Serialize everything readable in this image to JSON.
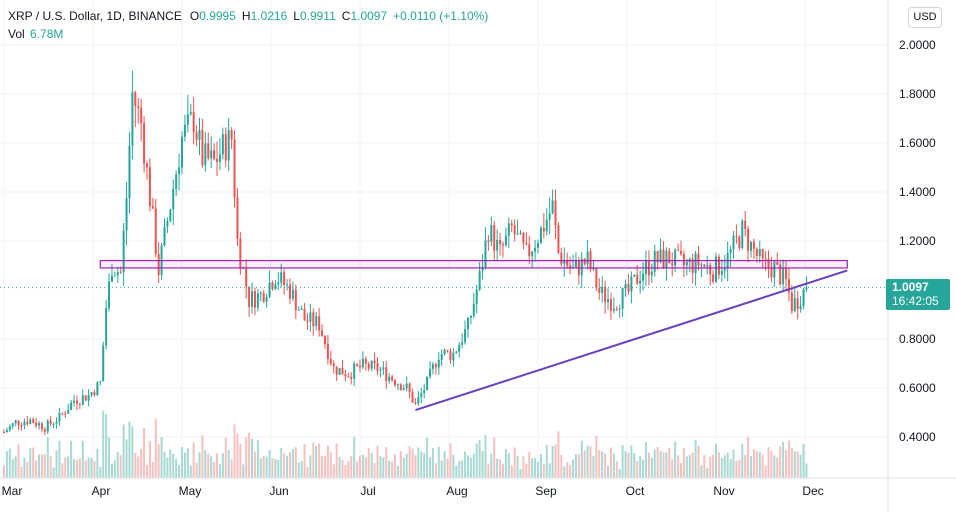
{
  "header": {
    "symbol": "XRP / U.S. Dollar, 1D, BINANCE",
    "open_label": "O",
    "open": "0.9995",
    "high_label": "H",
    "high": "1.0216",
    "low_label": "L",
    "low": "0.9911",
    "close_label": "C",
    "close": "1.0097",
    "change": "+0.0110 (+1.10%)",
    "vol_label": "Vol",
    "vol": "6.78M"
  },
  "currency_button": "USD",
  "price_tag": {
    "price": "1.0097",
    "countdown": "16:42:05"
  },
  "colors": {
    "up": "#26a69a",
    "down": "#ef5350",
    "up_volume": "#a8d9d3",
    "down_volume": "#f7c0bf",
    "trendline": "#6a3dc1",
    "zone": "#9c27b0",
    "last_price_line": "#26a69a"
  },
  "chart_data": {
    "type": "candlestick",
    "x_ticks": [
      "Mar",
      "Apr",
      "May",
      "Jun",
      "Jul",
      "Aug",
      "Sep",
      "Oct",
      "Nov",
      "Dec"
    ],
    "y_ticks": [
      "2.0000",
      "1.8000",
      "1.6000",
      "1.4000",
      "1.2000",
      "0.8000",
      "0.6000",
      "0.4000"
    ],
    "ylim": [
      0.29,
      2.09
    ],
    "date_range": [
      "2021-03-01",
      "2021-12-05"
    ],
    "last_price": 1.0097,
    "resistance_zone": {
      "from": "2021-04-03",
      "to": "2021-12-15",
      "low": 1.09,
      "high": 1.12
    },
    "trendline": {
      "from": [
        "2021-07-20",
        0.51
      ],
      "to": [
        "2021-12-15",
        1.08
      ]
    },
    "price_path": [
      [
        "2021-03-01",
        0.42
      ],
      [
        "2021-03-05",
        0.46
      ],
      [
        "2021-03-10",
        0.47
      ],
      [
        "2021-03-15",
        0.44
      ],
      [
        "2021-03-20",
        0.48
      ],
      [
        "2021-03-25",
        0.55
      ],
      [
        "2021-03-30",
        0.57
      ],
      [
        "2021-04-03",
        0.62
      ],
      [
        "2021-04-05",
        0.93
      ],
      [
        "2021-04-07",
        1.1
      ],
      [
        "2021-04-10",
        1.07
      ],
      [
        "2021-04-12",
        1.38
      ],
      [
        "2021-04-14",
        1.8
      ],
      [
        "2021-04-17",
        1.68
      ],
      [
        "2021-04-20",
        1.38
      ],
      [
        "2021-04-23",
        1.08
      ],
      [
        "2021-04-27",
        1.35
      ],
      [
        "2021-05-01",
        1.62
      ],
      [
        "2021-05-05",
        1.7
      ],
      [
        "2021-05-08",
        1.54
      ],
      [
        "2021-05-12",
        1.52
      ],
      [
        "2021-05-15",
        1.58
      ],
      [
        "2021-05-18",
        1.62
      ],
      [
        "2021-05-20",
        1.2
      ],
      [
        "2021-05-24",
        0.96
      ],
      [
        "2021-05-28",
        0.98
      ],
      [
        "2021-06-02",
        1.06
      ],
      [
        "2021-06-07",
        1.0
      ],
      [
        "2021-06-12",
        0.88
      ],
      [
        "2021-06-17",
        0.86
      ],
      [
        "2021-06-22",
        0.68
      ],
      [
        "2021-06-27",
        0.66
      ],
      [
        "2021-07-02",
        0.69
      ],
      [
        "2021-07-07",
        0.68
      ],
      [
        "2021-07-12",
        0.64
      ],
      [
        "2021-07-17",
        0.6
      ],
      [
        "2021-07-20",
        0.53
      ],
      [
        "2021-07-24",
        0.62
      ],
      [
        "2021-07-28",
        0.74
      ],
      [
        "2021-08-02",
        0.74
      ],
      [
        "2021-08-07",
        0.85
      ],
      [
        "2021-08-11",
        1.05
      ],
      [
        "2021-08-14",
        1.25
      ],
      [
        "2021-08-18",
        1.15
      ],
      [
        "2021-08-22",
        1.25
      ],
      [
        "2021-08-27",
        1.14
      ],
      [
        "2021-09-01",
        1.24
      ],
      [
        "2021-09-05",
        1.34
      ],
      [
        "2021-09-07",
        1.15
      ],
      [
        "2021-09-12",
        1.08
      ],
      [
        "2021-09-17",
        1.12
      ],
      [
        "2021-09-21",
        0.99
      ],
      [
        "2021-09-26",
        0.95
      ],
      [
        "2021-10-01",
        0.99
      ],
      [
        "2021-10-05",
        1.07
      ],
      [
        "2021-10-10",
        1.12
      ],
      [
        "2021-10-15",
        1.13
      ],
      [
        "2021-10-20",
        1.1
      ],
      [
        "2021-10-25",
        1.11
      ],
      [
        "2021-10-30",
        1.08
      ],
      [
        "2021-11-04",
        1.13
      ],
      [
        "2021-11-09",
        1.24
      ],
      [
        "2021-11-12",
        1.18
      ],
      [
        "2021-11-16",
        1.1
      ],
      [
        "2021-11-20",
        1.09
      ],
      [
        "2021-11-24",
        1.03
      ],
      [
        "2021-11-26",
        0.94
      ],
      [
        "2021-11-28",
        0.96
      ],
      [
        "2021-12-01",
        1.01
      ]
    ]
  }
}
